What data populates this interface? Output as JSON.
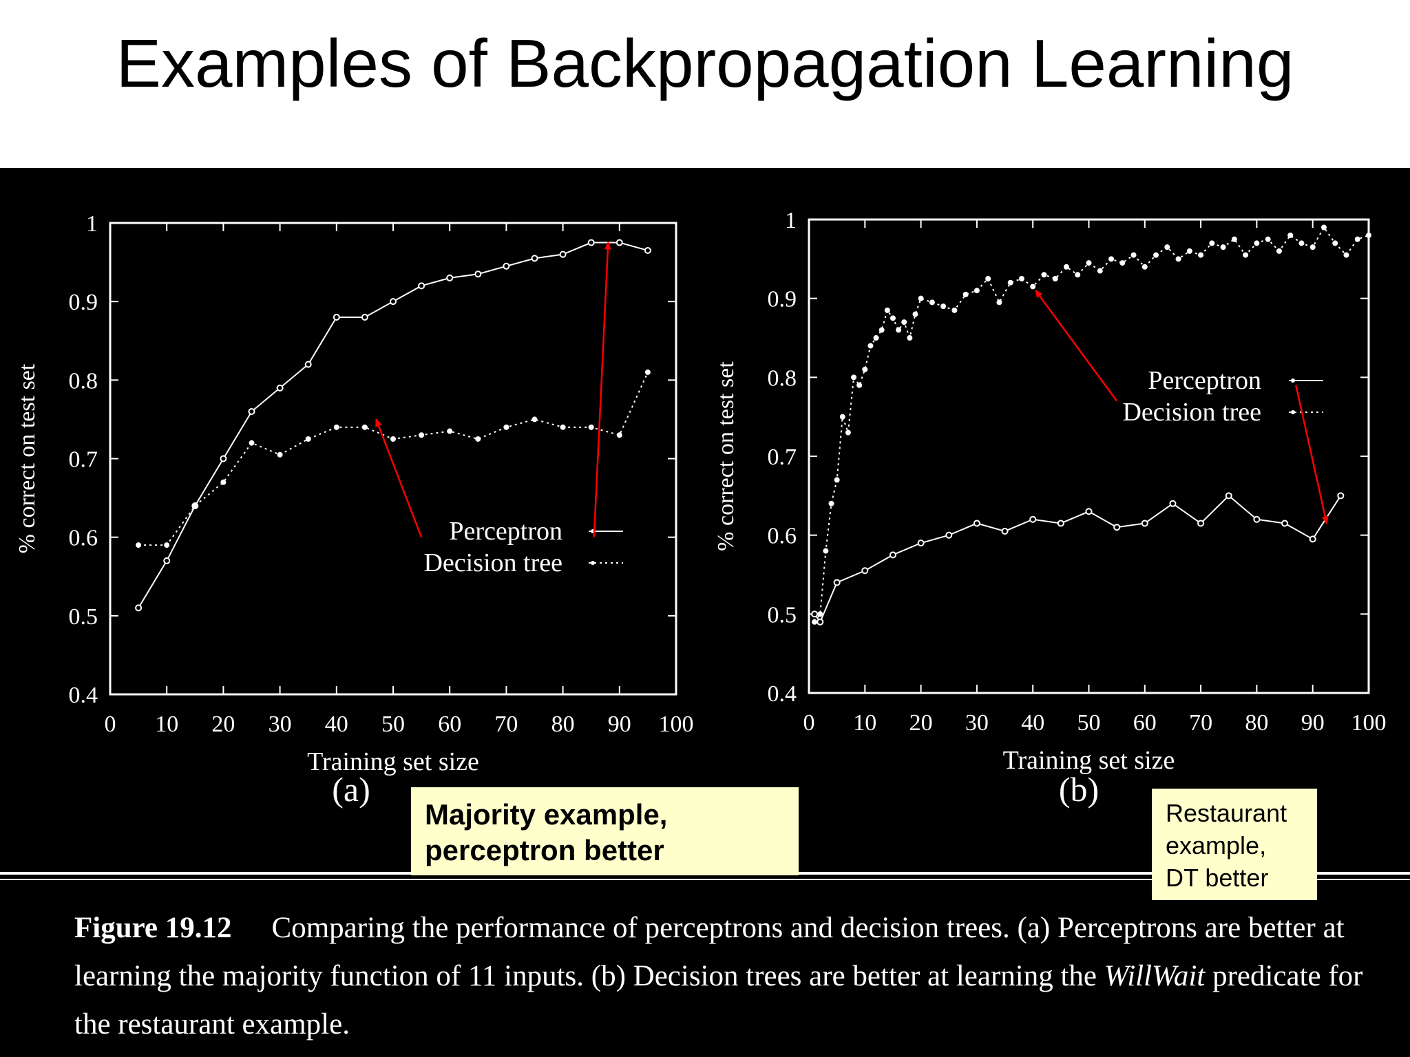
{
  "slide": {
    "title": "Examples of Backpropagation Learning"
  },
  "notes": {
    "a": "Majority example, perceptron better",
    "b": "Restaurant example, DT better"
  },
  "caption": {
    "label": "Figure 19.12",
    "text_before_em": "Comparing the performance of perceptrons and decision trees. (a) Perceptrons are better at learning the majority function of 11 inputs. (b) Decision trees are better at learning the",
    "em": "WillWait",
    "text_after_em": "predicate for the restaurant example."
  },
  "colors": {
    "slide_background": "#ffffff",
    "figure_background": "#000000",
    "figure_ink": "#ffffff",
    "arrow": "#ff0000",
    "note_background": "#ffffcc"
  },
  "chart_data": [
    {
      "type": "line",
      "panel_label": "(a)",
      "xlabel": "Training set size",
      "ylabel": "% correct on test set",
      "xlim": [
        0,
        100
      ],
      "ylim": [
        0.4,
        1
      ],
      "xticks": [
        0,
        10,
        20,
        30,
        40,
        50,
        60,
        70,
        80,
        90,
        100
      ],
      "yticks": [
        0.4,
        0.5,
        0.6,
        0.7,
        0.8,
        0.9,
        1
      ],
      "ytick_labels": [
        "0.4",
        "0.5",
        "0.6",
        "0.7",
        "0.8",
        "0.9",
        "1"
      ],
      "legend": {
        "position": "middle-right",
        "entries": [
          "Perceptron",
          "Decision tree"
        ]
      },
      "series": [
        {
          "name": "Perceptron",
          "marker": "dot",
          "x": [
            5,
            10,
            15,
            20,
            25,
            30,
            35,
            40,
            45,
            50,
            55,
            60,
            65,
            70,
            75,
            80,
            85,
            90,
            95
          ],
          "y": [
            0.51,
            0.57,
            0.64,
            0.7,
            0.76,
            0.79,
            0.82,
            0.88,
            0.88,
            0.9,
            0.92,
            0.93,
            0.935,
            0.945,
            0.955,
            0.96,
            0.975,
            0.975,
            0.965
          ]
        },
        {
          "name": "Decision tree",
          "marker": "small-dot",
          "x": [
            5,
            10,
            15,
            20,
            25,
            30,
            35,
            40,
            45,
            50,
            55,
            60,
            65,
            70,
            75,
            80,
            85,
            90,
            95
          ],
          "y": [
            0.59,
            0.59,
            0.64,
            0.67,
            0.72,
            0.705,
            0.725,
            0.74,
            0.74,
            0.725,
            0.73,
            0.735,
            0.725,
            0.74,
            0.75,
            0.74,
            0.74,
            0.73,
            0.81
          ]
        }
      ],
      "annotations": [
        {
          "type": "arrow",
          "from": [
            55,
            0.6
          ],
          "to": [
            47,
            0.75
          ],
          "target": "Decision tree"
        },
        {
          "type": "arrow",
          "from": [
            85.5,
            0.6
          ],
          "to": [
            88,
            0.975
          ],
          "target": "Perceptron"
        }
      ]
    },
    {
      "type": "line",
      "panel_label": "(b)",
      "xlabel": "Training set size",
      "ylabel": "% correct on test set",
      "xlim": [
        0,
        100
      ],
      "ylim": [
        0.4,
        1
      ],
      "xticks": [
        0,
        10,
        20,
        30,
        40,
        50,
        60,
        70,
        80,
        90,
        100
      ],
      "yticks": [
        0.4,
        0.5,
        0.6,
        0.7,
        0.8,
        0.9,
        1
      ],
      "ytick_labels": [
        "0.4",
        "0.5",
        "0.6",
        "0.7",
        "0.8",
        "0.9",
        "1"
      ],
      "legend": {
        "position": "upper-right",
        "entries": [
          "Perceptron",
          "Decision tree"
        ]
      },
      "series": [
        {
          "name": "Perceptron",
          "marker": "dot",
          "x": [
            1,
            2,
            5,
            10,
            15,
            20,
            25,
            30,
            35,
            40,
            45,
            50,
            55,
            60,
            65,
            70,
            75,
            80,
            85,
            90,
            95
          ],
          "y": [
            0.5,
            0.49,
            0.54,
            0.555,
            0.575,
            0.59,
            0.6,
            0.615,
            0.605,
            0.62,
            0.615,
            0.63,
            0.61,
            0.615,
            0.64,
            0.615,
            0.65,
            0.62,
            0.615,
            0.595,
            0.65
          ]
        },
        {
          "name": "Decision tree",
          "marker": "small-dot",
          "x": [
            1,
            2,
            3,
            4,
            5,
            6,
            7,
            8,
            9,
            10,
            11,
            12,
            13,
            14,
            15,
            16,
            17,
            18,
            19,
            20,
            22,
            24,
            26,
            28,
            30,
            32,
            34,
            36,
            38,
            40,
            42,
            44,
            46,
            48,
            50,
            52,
            54,
            56,
            58,
            60,
            62,
            64,
            66,
            68,
            70,
            72,
            74,
            76,
            78,
            80,
            82,
            84,
            86,
            88,
            90,
            92,
            94,
            96,
            98,
            100
          ],
          "y": [
            0.49,
            0.5,
            0.58,
            0.64,
            0.67,
            0.75,
            0.73,
            0.8,
            0.79,
            0.81,
            0.84,
            0.85,
            0.86,
            0.885,
            0.875,
            0.86,
            0.87,
            0.85,
            0.88,
            0.9,
            0.895,
            0.89,
            0.885,
            0.905,
            0.91,
            0.925,
            0.895,
            0.92,
            0.925,
            0.915,
            0.93,
            0.925,
            0.94,
            0.93,
            0.945,
            0.935,
            0.95,
            0.945,
            0.955,
            0.94,
            0.955,
            0.965,
            0.95,
            0.96,
            0.955,
            0.97,
            0.965,
            0.975,
            0.955,
            0.97,
            0.975,
            0.96,
            0.98,
            0.97,
            0.965,
            0.99,
            0.97,
            0.955,
            0.975,
            0.98
          ]
        }
      ],
      "annotations": [
        {
          "type": "arrow",
          "from": [
            55,
            0.77
          ],
          "to": [
            40.5,
            0.91
          ],
          "target": "Decision tree"
        },
        {
          "type": "arrow",
          "from": [
            87,
            0.79
          ],
          "to": [
            92.5,
            0.615
          ],
          "target": "Perceptron"
        }
      ]
    }
  ]
}
